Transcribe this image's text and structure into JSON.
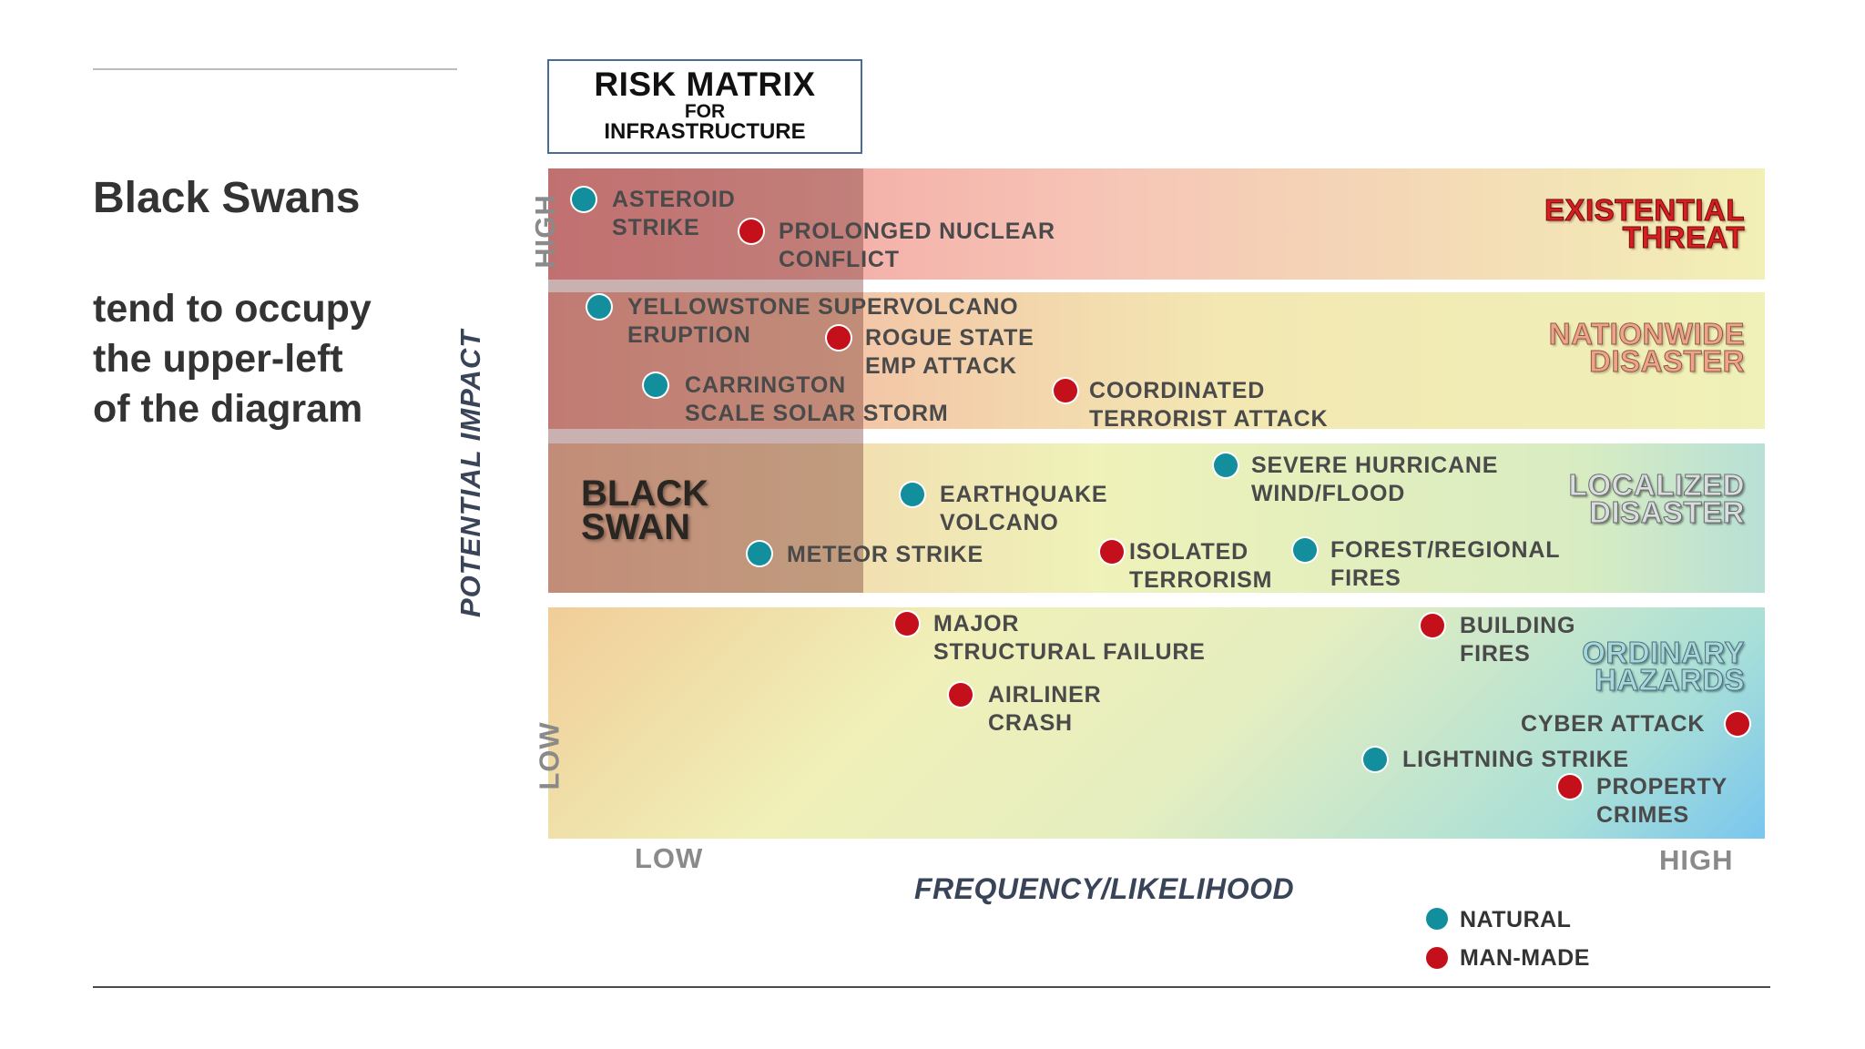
{
  "slide": {
    "title": "Black Swans",
    "body_lines": [
      "tend to occupy",
      "the upper-left",
      "of the diagram"
    ]
  },
  "matrix": {
    "title_line1": "RISK MATRIX",
    "title_line2": "FOR",
    "title_line3": "INFRASTRUCTURE",
    "y_axis_title": "POTENTIAL IMPACT",
    "y_high": "HIGH",
    "y_low": "LOW",
    "x_axis_title": "FREQUENCY/LIKELIHOOD",
    "x_low": "LOW",
    "x_high": "HIGH",
    "black_swan": {
      "line1": "BLACK",
      "line2": "SWAN"
    },
    "categories": [
      {
        "line1": "EXISTENTIAL",
        "line2": "THREAT"
      },
      {
        "line1": "NATIONWIDE",
        "line2": "DISASTER"
      },
      {
        "line1": "LOCALIZED",
        "line2": "DISASTER"
      },
      {
        "line1": "ORDINARY",
        "line2": "HAZARDS"
      }
    ],
    "risks": [
      {
        "line1": "ASTEROID",
        "line2": "STRIKE",
        "type": "natural"
      },
      {
        "line1": "PROLONGED NUCLEAR",
        "line2": "CONFLICT",
        "type": "man-made"
      },
      {
        "line1": "YELLOWSTONE SUPERVOLCANO",
        "line2": "ERUPTION",
        "type": "natural"
      },
      {
        "line1": "ROGUE STATE",
        "line2": "EMP ATTACK",
        "type": "man-made"
      },
      {
        "line1": "CARRINGTON",
        "line2": "SCALE SOLAR STORM",
        "type": "natural"
      },
      {
        "line1": "COORDINATED",
        "line2": "TERRORIST ATTACK",
        "type": "man-made"
      },
      {
        "line1": "SEVERE HURRICANE",
        "line2": "WIND/FLOOD",
        "type": "natural"
      },
      {
        "line1": "EARTHQUAKE",
        "line2": "VOLCANO",
        "type": "natural"
      },
      {
        "line1": "METEOR STRIKE",
        "line2": "",
        "type": "natural"
      },
      {
        "line1": "ISOLATED",
        "line2": "TERRORISM",
        "type": "man-made"
      },
      {
        "line1": "FOREST/REGIONAL",
        "line2": "FIRES",
        "type": "natural"
      },
      {
        "line1": "MAJOR",
        "line2": "STRUCTURAL FAILURE",
        "type": "man-made"
      },
      {
        "line1": "BUILDING",
        "line2": "FIRES",
        "type": "man-made"
      },
      {
        "line1": "AIRLINER",
        "line2": "CRASH",
        "type": "man-made"
      },
      {
        "line1": "CYBER ATTACK",
        "line2": "",
        "type": "man-made"
      },
      {
        "line1": "LIGHTNING STRIKE",
        "line2": "",
        "type": "natural"
      },
      {
        "line1": "PROPERTY",
        "line2": "CRIMES",
        "type": "man-made"
      }
    ],
    "legend": {
      "natural": "NATURAL",
      "man_made": "MAN-MADE",
      "natural_color": "#128e9c",
      "man_made_color": "#c4101a"
    }
  }
}
